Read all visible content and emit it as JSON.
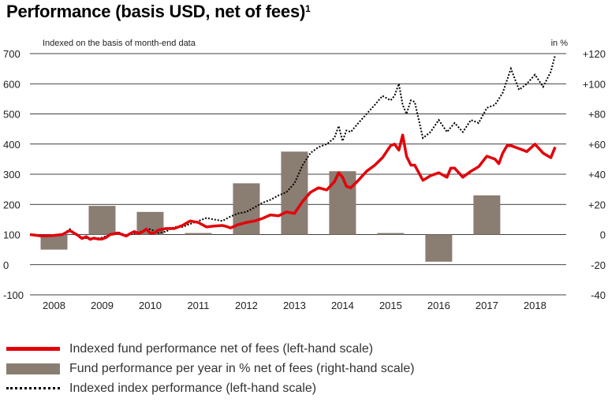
{
  "title": "Performance (basis USD, net of fees)",
  "title_sup": "1",
  "subtitle_left": "Indexed on the basis of month-end data",
  "subtitle_right": "in %",
  "legend": [
    {
      "label": "Indexed fund performance net of fees (left-hand scale)",
      "style": "red-line"
    },
    {
      "label": "Fund performance per year in % net of fees (right-hand scale)",
      "style": "bar"
    },
    {
      "label": "Indexed index performance (left-hand scale)",
      "style": "dotted-line"
    }
  ],
  "colors": {
    "fund_line": "#e3000b",
    "bars": "#8a7d72",
    "index_line": "#000000",
    "grid": "#000000"
  },
  "chart_data": {
    "type": "bar+line",
    "left_axis": {
      "ticks": [
        -100,
        0,
        100,
        200,
        300,
        400,
        500,
        600,
        700
      ],
      "range": [
        -100,
        700
      ]
    },
    "right_axis": {
      "ticks": [
        "-40",
        "-20",
        "0",
        "+20",
        "+40",
        "+60",
        "+80",
        "+100",
        "+120"
      ],
      "range": [
        -40,
        120
      ]
    },
    "categories": [
      "2008",
      "2009",
      "2010",
      "2011",
      "2012",
      "2013",
      "2014",
      "2015",
      "2016",
      "2017",
      "2018"
    ],
    "bars": {
      "name": "Fund performance per year in % net of fees (right-hand scale)",
      "values": [
        -10,
        19,
        15,
        1,
        34,
        55,
        42,
        1,
        -18,
        26
      ]
    },
    "series": [
      {
        "name": "Indexed fund performance net of fees (left-hand scale)",
        "x": [
          2007.5,
          2007.75,
          2008.0,
          2008.17,
          2008.33,
          2008.5,
          2008.58,
          2008.67,
          2008.75,
          2008.83,
          2008.92,
          2009.0,
          2009.08,
          2009.17,
          2009.33,
          2009.5,
          2009.58,
          2009.67,
          2009.75,
          2009.83,
          2009.92,
          2010.0,
          2010.08,
          2010.17,
          2010.33,
          2010.5,
          2010.67,
          2010.83,
          2011.0,
          2011.17,
          2011.33,
          2011.5,
          2011.58,
          2011.67,
          2011.83,
          2012.0,
          2012.17,
          2012.33,
          2012.5,
          2012.67,
          2012.83,
          2013.0,
          2013.17,
          2013.33,
          2013.5,
          2013.67,
          2013.83,
          2013.92,
          2014.0,
          2014.08,
          2014.17,
          2014.33,
          2014.5,
          2014.67,
          2014.83,
          2015.0,
          2015.08,
          2015.17,
          2015.25,
          2015.33,
          2015.42,
          2015.5,
          2015.67,
          2015.83,
          2016.0,
          2016.17,
          2016.25,
          2016.33,
          2016.5,
          2016.67,
          2016.83,
          2017.0,
          2017.17,
          2017.25,
          2017.33,
          2017.42,
          2017.5,
          2017.67,
          2017.83,
          2018.0,
          2018.17,
          2018.33,
          2018.42
        ],
        "y": [
          100,
          95,
          97,
          100,
          113,
          97,
          87,
          93,
          84,
          88,
          85,
          85,
          90,
          100,
          105,
          95,
          103,
          110,
          104,
          108,
          118,
          105,
          105,
          115,
          120,
          120,
          130,
          145,
          140,
          125,
          128,
          130,
          127,
          122,
          133,
          140,
          145,
          153,
          165,
          162,
          175,
          170,
          210,
          240,
          255,
          248,
          275,
          305,
          290,
          260,
          255,
          280,
          310,
          330,
          355,
          395,
          400,
          380,
          430,
          360,
          330,
          330,
          280,
          295,
          305,
          290,
          320,
          320,
          290,
          310,
          325,
          360,
          350,
          335,
          370,
          395,
          395,
          385,
          375,
          400,
          370,
          355,
          390
        ]
      },
      {
        "name": "Indexed index performance (left-hand scale)",
        "x": [
          2007.5,
          2007.75,
          2008.0,
          2008.17,
          2008.33,
          2008.5,
          2008.67,
          2008.83,
          2009.0,
          2009.17,
          2009.33,
          2009.5,
          2009.67,
          2009.83,
          2010.0,
          2010.17,
          2010.33,
          2010.5,
          2010.67,
          2010.83,
          2011.0,
          2011.17,
          2011.33,
          2011.5,
          2011.67,
          2011.83,
          2012.0,
          2012.17,
          2012.33,
          2012.5,
          2012.67,
          2012.83,
          2013.0,
          2013.17,
          2013.33,
          2013.5,
          2013.67,
          2013.83,
          2013.92,
          2014.0,
          2014.08,
          2014.17,
          2014.33,
          2014.5,
          2014.67,
          2014.83,
          2015.0,
          2015.08,
          2015.17,
          2015.25,
          2015.33,
          2015.42,
          2015.5,
          2015.67,
          2015.83,
          2016.0,
          2016.17,
          2016.33,
          2016.5,
          2016.67,
          2016.83,
          2017.0,
          2017.17,
          2017.33,
          2017.5,
          2017.67,
          2017.83,
          2018.0,
          2018.17,
          2018.33,
          2018.42
        ],
        "y": [
          100,
          98,
          97,
          100,
          118,
          95,
          88,
          85,
          90,
          100,
          108,
          97,
          104,
          110,
          118,
          105,
          110,
          125,
          125,
          135,
          145,
          155,
          150,
          145,
          160,
          170,
          175,
          190,
          205,
          215,
          230,
          240,
          270,
          330,
          370,
          390,
          400,
          420,
          460,
          410,
          445,
          440,
          470,
          500,
          530,
          560,
          545,
          560,
          600,
          530,
          500,
          545,
          540,
          420,
          440,
          480,
          440,
          470,
          440,
          480,
          470,
          520,
          530,
          570,
          650,
          580,
          600,
          630,
          590,
          640,
          695
        ]
      }
    ]
  }
}
